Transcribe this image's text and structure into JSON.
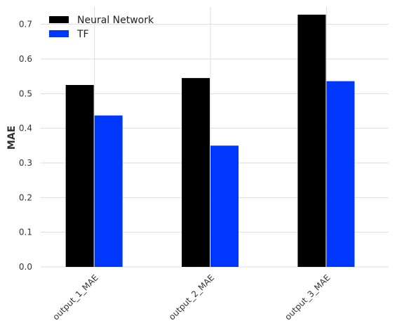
{
  "chart_data": {
    "type": "bar",
    "categories": [
      "output_1_MAE",
      "output_2_MAE",
      "output_3_MAE"
    ],
    "series": [
      {
        "name": "Neural Network",
        "values": [
          0.525,
          0.545,
          0.728
        ],
        "color": "#000000"
      },
      {
        "name": "TF",
        "values": [
          0.437,
          0.35,
          0.536
        ],
        "color": "#0037ff"
      }
    ],
    "xlabel": "",
    "ylabel": "MAE",
    "ylim": [
      0,
      0.75
    ],
    "yticks": [
      0.0,
      0.1,
      0.2,
      0.3,
      0.4,
      0.5,
      0.6,
      0.7
    ],
    "ytick_labels": [
      "0.0",
      "0.1",
      "0.2",
      "0.3",
      "0.4",
      "0.5",
      "0.6",
      "0.7"
    ],
    "grid": true,
    "legend_position": "top-left"
  }
}
